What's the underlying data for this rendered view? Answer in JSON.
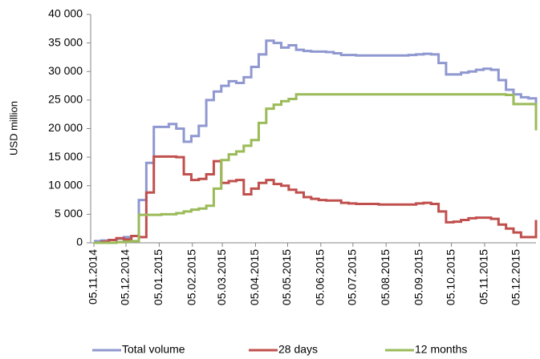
{
  "chart_data": {
    "type": "line",
    "step": true,
    "y_label": "USD million",
    "x": [
      "2014-11-05",
      "2014-11-12",
      "2014-11-19",
      "2014-11-26",
      "2014-12-03",
      "2014-12-10",
      "2014-12-17",
      "2014-12-24",
      "2014-12-31",
      "2015-01-07",
      "2015-01-14",
      "2015-01-21",
      "2015-01-28",
      "2015-02-04",
      "2015-02-11",
      "2015-02-18",
      "2015-02-25",
      "2015-03-04",
      "2015-03-11",
      "2015-03-18",
      "2015-03-25",
      "2015-04-01",
      "2015-04-08",
      "2015-04-15",
      "2015-04-22",
      "2015-04-29",
      "2015-05-06",
      "2015-05-13",
      "2015-05-20",
      "2015-05-27",
      "2015-06-03",
      "2015-06-10",
      "2015-06-17",
      "2015-06-24",
      "2015-07-01",
      "2015-07-08",
      "2015-07-15",
      "2015-07-22",
      "2015-07-29",
      "2015-08-05",
      "2015-08-12",
      "2015-08-19",
      "2015-08-26",
      "2015-09-02",
      "2015-09-09",
      "2015-09-16",
      "2015-09-23",
      "2015-09-30",
      "2015-10-07",
      "2015-10-14",
      "2015-10-21",
      "2015-10-28",
      "2015-11-04",
      "2015-11-11",
      "2015-11-18",
      "2015-11-25",
      "2015-12-02",
      "2015-12-09",
      "2015-12-16",
      "2015-12-23"
    ],
    "series": [
      {
        "name": "Total volume",
        "color": "#8f98d0",
        "values": [
          300,
          400,
          500,
          700,
          1000,
          1200,
          7500,
          14000,
          20300,
          20300,
          20800,
          20000,
          17700,
          18700,
          20500,
          25000,
          26500,
          27500,
          28300,
          28000,
          29000,
          30800,
          33000,
          35400,
          35000,
          34200,
          34600,
          33800,
          33600,
          33500,
          33500,
          33400,
          33200,
          32900,
          32900,
          32800,
          32800,
          32800,
          32800,
          32800,
          32800,
          32800,
          32900,
          33000,
          33100,
          33000,
          31500,
          29500,
          29500,
          29800,
          30000,
          30300,
          30500,
          30300,
          28500,
          26800,
          26000,
          25500,
          25300,
          23500
        ]
      },
      {
        "name": "28 days",
        "color": "#c0504d",
        "values": [
          0,
          200,
          500,
          800,
          600,
          1200,
          1000,
          8800,
          15100,
          15100,
          15100,
          15000,
          12000,
          11000,
          11200,
          12000,
          14300,
          10500,
          10800,
          11000,
          8500,
          9500,
          10500,
          11000,
          10300,
          10000,
          9300,
          8800,
          8000,
          7700,
          7500,
          7400,
          7400,
          7000,
          6900,
          6800,
          6800,
          6800,
          6700,
          6700,
          6700,
          6700,
          6700,
          6900,
          7000,
          6800,
          5500,
          3600,
          3700,
          4000,
          4300,
          4400,
          4400,
          4200,
          3200,
          2500,
          1800,
          1000,
          1000,
          4000
        ]
      },
      {
        "name": "12 months",
        "color": "#9bbb59",
        "values": [
          0,
          0,
          0,
          100,
          200,
          300,
          4900,
          4900,
          4900,
          5000,
          5000,
          5200,
          5500,
          5800,
          6000,
          6500,
          9500,
          14500,
          15500,
          16000,
          17000,
          18000,
          21000,
          23500,
          24200,
          24800,
          25200,
          26000,
          26000,
          26000,
          26000,
          26000,
          26000,
          26000,
          26000,
          26000,
          26000,
          26000,
          26000,
          26000,
          26000,
          26000,
          26000,
          26000,
          26000,
          26000,
          26000,
          26000,
          26000,
          26000,
          26000,
          26000,
          26000,
          26000,
          26000,
          25900,
          24300,
          24300,
          24300,
          19700
        ]
      }
    ],
    "xlim": [
      "2014-11-02",
      "2015-12-23"
    ],
    "xticks": [
      {
        "value": "2014-11-05",
        "label": "05.11.2014"
      },
      {
        "value": "2014-12-05",
        "label": "05.12.2014"
      },
      {
        "value": "2015-01-05",
        "label": "05.01.2015"
      },
      {
        "value": "2015-02-05",
        "label": "05.02.2015"
      },
      {
        "value": "2015-03-05",
        "label": "05.03.2015"
      },
      {
        "value": "2015-04-05",
        "label": "05.04.2015"
      },
      {
        "value": "2015-05-05",
        "label": "05.05.2015"
      },
      {
        "value": "2015-06-05",
        "label": "05.06.2015"
      },
      {
        "value": "2015-07-05",
        "label": "05.07.2015"
      },
      {
        "value": "2015-08-05",
        "label": "05.08.2015"
      },
      {
        "value": "2015-09-05",
        "label": "05.09.2015"
      },
      {
        "value": "2015-10-05",
        "label": "05.10.2015"
      },
      {
        "value": "2015-11-05",
        "label": "05.11.2015"
      },
      {
        "value": "2015-12-05",
        "label": "05.12.2015"
      }
    ],
    "ylim": [
      0,
      40000
    ],
    "yticks": [
      0,
      {
        "value": 5000,
        "label": "5 000"
      },
      {
        "value": 10000,
        "label": "10 000"
      },
      {
        "value": 15000,
        "label": "15 000"
      },
      {
        "value": 20000,
        "label": "20 000"
      },
      {
        "value": 25000,
        "label": "25 000"
      },
      {
        "value": 30000,
        "label": "30 000"
      },
      {
        "value": 35000,
        "label": "35 000"
      },
      {
        "value": 40000,
        "label": "40 000"
      }
    ],
    "grid": false,
    "legend": "bottom"
  }
}
